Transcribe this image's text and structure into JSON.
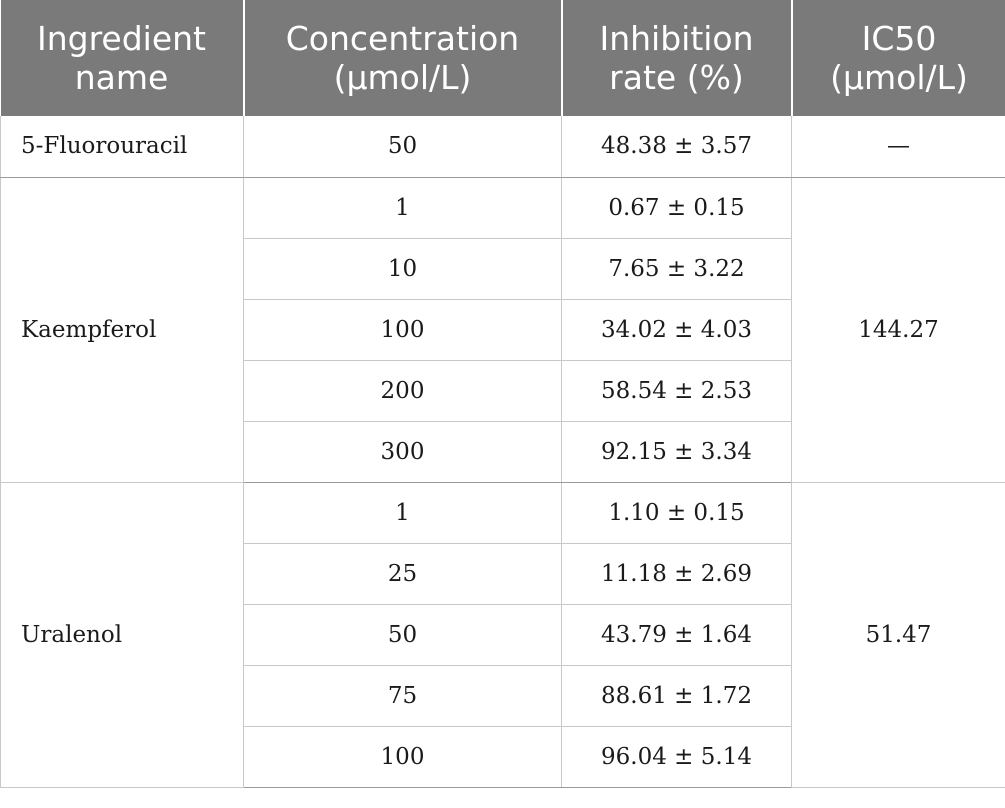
{
  "table": {
    "headers": [
      [
        "Ingredient",
        "name"
      ],
      [
        "Concentration",
        "(μmol/L)"
      ],
      [
        "Inhibition",
        "rate (%)"
      ],
      [
        "IC50",
        "(μmol/L)"
      ]
    ],
    "groups": [
      {
        "name": "5-Fluorouracil",
        "ic50": "—",
        "rows": [
          {
            "concentration": "50",
            "inhibition": "48.38 ± 3.57"
          }
        ]
      },
      {
        "name": "Kaempferol",
        "ic50": "144.27",
        "rows": [
          {
            "concentration": "1",
            "inhibition": "0.67 ± 0.15"
          },
          {
            "concentration": "10",
            "inhibition": "7.65 ± 3.22"
          },
          {
            "concentration": "100",
            "inhibition": "34.02 ± 4.03"
          },
          {
            "concentration": "200",
            "inhibition": "58.54 ± 2.53"
          },
          {
            "concentration": "300",
            "inhibition": "92.15 ± 3.34"
          }
        ]
      },
      {
        "name": "Uralenol",
        "ic50": "51.47",
        "rows": [
          {
            "concentration": "1",
            "inhibition": "1.10 ± 0.15"
          },
          {
            "concentration": "25",
            "inhibition": "11.18 ± 2.69"
          },
          {
            "concentration": "50",
            "inhibition": "43.79 ± 1.64"
          },
          {
            "concentration": "75",
            "inhibition": "88.61 ± 1.72"
          },
          {
            "concentration": "100",
            "inhibition": "96.04 ± 5.14"
          }
        ]
      }
    ]
  }
}
